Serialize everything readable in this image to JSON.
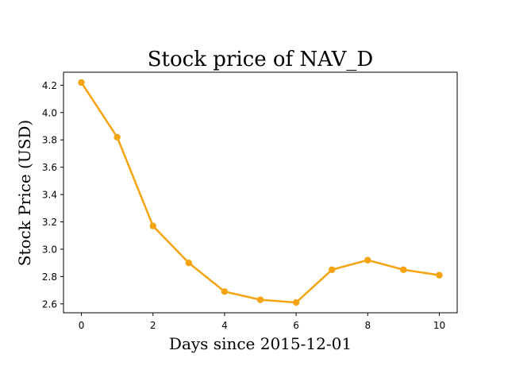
{
  "chart_data": {
    "type": "line",
    "title": "Stock price of NAV_D",
    "xlabel": "Days since 2015-12-01",
    "ylabel": "Stock Price (USD)",
    "x": [
      0,
      1,
      2,
      3,
      4,
      5,
      6,
      7,
      8,
      9,
      10
    ],
    "series": [
      {
        "values": [
          4.22,
          3.82,
          3.17,
          2.9,
          2.69,
          2.63,
          2.61,
          2.85,
          2.92,
          2.85,
          2.81
        ],
        "color": "#f5a30f"
      }
    ],
    "xlim": [
      -0.5,
      10.5
    ],
    "ylim": [
      2.535,
      4.295
    ],
    "xticks": [
      0,
      2,
      4,
      6,
      8,
      10
    ],
    "xtick_labels": [
      "0",
      "2",
      "4",
      "6",
      "8",
      "10"
    ],
    "yticks": [
      2.6,
      2.8,
      3.0,
      3.2,
      3.4,
      3.6,
      3.8,
      4.0,
      4.2
    ],
    "ytick_labels": [
      "2.6",
      "2.8",
      "3.0",
      "3.2",
      "3.4",
      "3.6",
      "3.8",
      "4.0",
      "4.2"
    ],
    "grid": false,
    "legend": false,
    "marker": "circle"
  }
}
